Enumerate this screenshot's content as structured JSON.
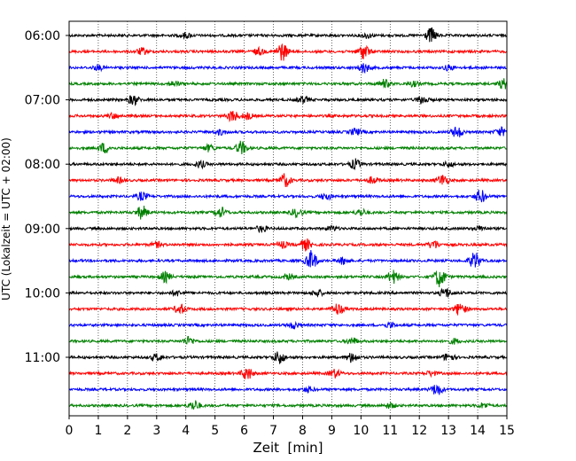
{
  "chart_data": {
    "type": "line",
    "title": "",
    "xlabel": "Zeit  [min]",
    "ylabel": "UTC (Lokalzeit = UTC + 02:00)",
    "xlim": [
      0,
      15
    ],
    "x_ticks": [
      "0",
      "1",
      "2",
      "3",
      "4",
      "5",
      "6",
      "7",
      "8",
      "9",
      "10",
      "11",
      "12",
      "13",
      "14",
      "15"
    ],
    "y_ticks": [
      {
        "label": "06:00",
        "row": 0
      },
      {
        "label": "07:00",
        "row": 4
      },
      {
        "label": "08:00",
        "row": 8
      },
      {
        "label": "09:00",
        "row": 12
      },
      {
        "label": "10:00",
        "row": 16
      },
      {
        "label": "11:00",
        "row": 20
      }
    ],
    "rows": 24,
    "row_colors": [
      "#000000",
      "#ff0000",
      "#0000ff",
      "#008000"
    ],
    "grid": {
      "x": true,
      "style": "dotted"
    },
    "bursts": [
      [
        [
          12.4,
          0.9
        ],
        [
          4.0,
          0.3
        ],
        [
          10.2,
          0.3
        ]
      ],
      [
        [
          7.3,
          1.1
        ],
        [
          10.1,
          0.9
        ],
        [
          2.5,
          0.4
        ],
        [
          6.5,
          0.4
        ]
      ],
      [
        [
          10.1,
          0.6
        ],
        [
          1.0,
          0.3
        ],
        [
          13.0,
          0.3
        ]
      ],
      [
        [
          14.9,
          0.6
        ],
        [
          10.8,
          0.5
        ],
        [
          3.6,
          0.3
        ],
        [
          11.8,
          0.3
        ]
      ],
      [
        [
          2.2,
          0.6
        ],
        [
          8.0,
          0.4
        ],
        [
          12.1,
          0.5
        ]
      ],
      [
        [
          5.6,
          0.7
        ],
        [
          6.1,
          0.4
        ],
        [
          1.5,
          0.3
        ]
      ],
      [
        [
          13.3,
          0.7
        ],
        [
          14.8,
          0.5
        ],
        [
          9.8,
          0.4
        ],
        [
          5.2,
          0.3
        ]
      ],
      [
        [
          5.9,
          0.8
        ],
        [
          1.2,
          0.6
        ],
        [
          4.8,
          0.4
        ]
      ],
      [
        [
          4.5,
          0.4
        ],
        [
          9.8,
          0.6
        ],
        [
          13.0,
          0.3
        ]
      ],
      [
        [
          7.4,
          0.8
        ],
        [
          12.8,
          0.7
        ],
        [
          10.4,
          0.4
        ],
        [
          1.7,
          0.3
        ]
      ],
      [
        [
          14.1,
          0.8
        ],
        [
          2.5,
          0.5
        ],
        [
          8.8,
          0.4
        ]
      ],
      [
        [
          2.5,
          0.8
        ],
        [
          5.2,
          0.6
        ],
        [
          7.8,
          0.5
        ],
        [
          10.0,
          0.4
        ]
      ],
      [
        [
          6.6,
          0.4
        ],
        [
          9.0,
          0.3
        ],
        [
          14.1,
          0.3
        ]
      ],
      [
        [
          8.1,
          0.7
        ],
        [
          7.3,
          0.4
        ],
        [
          12.5,
          0.5
        ],
        [
          3.0,
          0.3
        ]
      ],
      [
        [
          8.3,
          1.2
        ],
        [
          13.9,
          1.0
        ],
        [
          9.4,
          0.4
        ]
      ],
      [
        [
          12.7,
          1.2
        ],
        [
          11.1,
          0.8
        ],
        [
          3.3,
          0.6
        ],
        [
          7.5,
          0.3
        ]
      ],
      [
        [
          12.9,
          0.6
        ],
        [
          8.5,
          0.4
        ],
        [
          3.7,
          0.3
        ]
      ],
      [
        [
          9.2,
          0.7
        ],
        [
          13.4,
          0.8
        ],
        [
          3.8,
          0.6
        ]
      ],
      [
        [
          7.7,
          0.4
        ],
        [
          11.0,
          0.3
        ]
      ],
      [
        [
          4.1,
          0.5
        ],
        [
          9.7,
          0.4
        ],
        [
          13.2,
          0.3
        ]
      ],
      [
        [
          7.2,
          0.8
        ],
        [
          3.0,
          0.4
        ],
        [
          9.7,
          0.6
        ],
        [
          13.0,
          0.5
        ]
      ],
      [
        [
          6.1,
          0.8
        ],
        [
          9.1,
          0.5
        ],
        [
          12.4,
          0.3
        ]
      ],
      [
        [
          12.6,
          0.7
        ],
        [
          8.2,
          0.3
        ]
      ],
      [
        [
          4.3,
          0.6
        ],
        [
          11.0,
          0.3
        ],
        [
          14.2,
          0.3
        ]
      ]
    ]
  }
}
